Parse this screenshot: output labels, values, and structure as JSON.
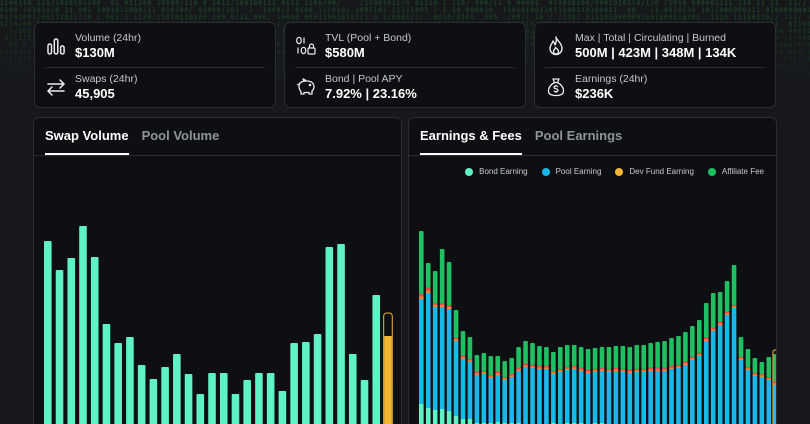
{
  "stats": {
    "card1": {
      "row1": {
        "label": "Volume (24hr)",
        "value": "$130M",
        "icon": "bar-chart-icon"
      },
      "row2": {
        "label": "Swaps (24hr)",
        "value": "45,905",
        "icon": "swap-arrows-icon"
      }
    },
    "card2": {
      "row1": {
        "label": "TVL (Pool + Bond)",
        "value": "$580M",
        "icon": "binary-lock-icon"
      },
      "row2": {
        "label": "Bond | Pool APY",
        "value": "7.92% | 23.16%",
        "icon": "piggy-bank-icon"
      }
    },
    "card3": {
      "row1": {
        "label": "Max | Total | Circulating | Burned",
        "value": "500M | 423M | 348M | 134K",
        "icon": "flame-icon"
      },
      "row2": {
        "label": "Earnings (24hr)",
        "value": "$236K",
        "icon": "money-bag-icon"
      }
    }
  },
  "left_panel": {
    "tabs": [
      {
        "label": "Swap Volume",
        "active": true
      },
      {
        "label": "Pool Volume",
        "active": false
      }
    ]
  },
  "right_panel": {
    "tabs": [
      {
        "label": "Earnings & Fees",
        "active": true
      },
      {
        "label": "Pool Earnings",
        "active": false
      }
    ],
    "legend": [
      {
        "label": "Bond Earning",
        "color": "#5ff2c4"
      },
      {
        "label": "Pool Earning",
        "color": "#19b8e8"
      },
      {
        "label": "Dev Fund Earning",
        "color": "#f2b632"
      },
      {
        "label": "Affiliate Fee",
        "color": "#1fbf62"
      }
    ]
  },
  "chart_data": [
    {
      "type": "bar",
      "values": [
        197,
        168,
        180,
        212,
        181,
        114,
        95,
        101,
        73,
        59,
        71,
        84,
        64,
        44,
        65,
        65,
        44,
        58,
        65,
        65,
        47,
        95,
        96,
        104,
        191,
        194,
        84,
        58,
        143,
        102
      ],
      "last_bar_style": "highlighted-outline",
      "ylim": [
        0,
        230
      ],
      "colors": {
        "bar": "#5ff2c4",
        "last_bar": "#f2b632"
      }
    },
    {
      "type": "bar",
      "stacked": true,
      "ylim": [
        0,
        230
      ],
      "series": [
        {
          "name": "Bond Earning",
          "color": "#5ff2c4",
          "values": [
            34,
            30,
            28,
            29,
            27,
            22,
            19,
            19,
            15,
            15,
            15,
            16,
            15,
            15,
            15,
            14,
            14,
            14,
            14,
            15,
            14,
            15,
            15,
            15,
            14,
            15,
            15,
            14,
            14,
            14,
            14,
            14,
            14,
            14,
            13,
            12,
            13,
            13,
            13,
            13,
            12,
            12,
            12,
            13,
            14,
            14,
            12,
            12,
            12,
            13,
            12,
            12
          ]
        },
        {
          "name": "Pool Earning",
          "color": "#19b8e8",
          "values": [
            105,
            115,
            103,
            102,
            102,
            75,
            60,
            57,
            48,
            49,
            45,
            47,
            43,
            46,
            52,
            57,
            56,
            55,
            55,
            49,
            52,
            53,
            54,
            52,
            51,
            51,
            52,
            52,
            53,
            52,
            51,
            52,
            52,
            53,
            54,
            55,
            56,
            57,
            60,
            65,
            70,
            85,
            95,
            100,
            109,
            116,
            66,
            56,
            50,
            48,
            46,
            41
          ]
        },
        {
          "name": "Dev Fund Earning",
          "color": "#f2b632",
          "values": [
            5,
            5,
            4,
            4,
            4,
            3,
            3,
            3,
            3,
            3,
            3,
            3,
            3,
            3,
            3,
            3,
            3,
            3,
            3,
            3,
            3,
            3,
            3,
            3,
            3,
            3,
            3,
            3,
            3,
            3,
            3,
            3,
            3,
            3,
            3,
            3,
            3,
            3,
            3,
            3,
            3,
            3,
            3,
            3,
            3,
            3,
            3,
            3,
            3,
            3,
            3,
            3
          ]
        },
        {
          "name": "Affiliate Fee",
          "color": "#1fbf62",
          "values": [
            63,
            25,
            32,
            54,
            43,
            28,
            25,
            22,
            17,
            18,
            19,
            16,
            16,
            16,
            21,
            23,
            22,
            20,
            19,
            19,
            22,
            22,
            21,
            21,
            21,
            21,
            21,
            22,
            22,
            23,
            23,
            24,
            24,
            25,
            26,
            27,
            28,
            29,
            30,
            31,
            33,
            35,
            35,
            30,
            31,
            40,
            20,
            18,
            15,
            12,
            20,
            28
          ]
        }
      ],
      "extra_mark_colors": {
        "red": "#e54b4b",
        "orange": "#f08a2b"
      },
      "last_bar_style": "highlighted-outline"
    }
  ]
}
